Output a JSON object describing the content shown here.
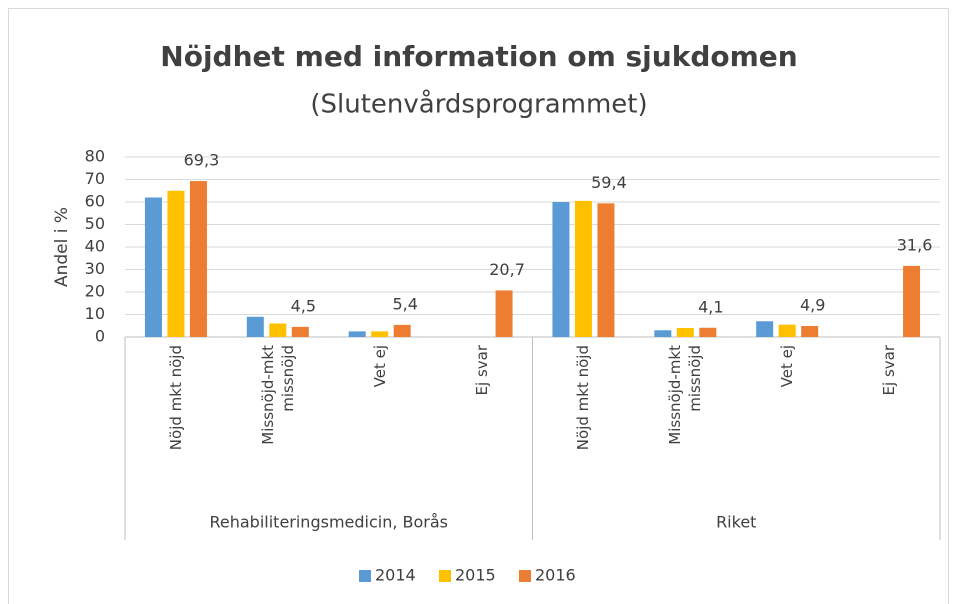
{
  "chart_data": {
    "type": "bar",
    "title": "Nöjdhet med information om sjukdomen",
    "subtitle": "(Slutenvårdsprogrammet)",
    "y_label": "Andel i %",
    "groups": [
      {
        "name": "Rehabiliteringsmedicin, Borås",
        "categories": [
          "Nöjd mkt nöjd",
          "Missnöjd-mkt missnöjd",
          "Vet ej",
          "Ej svar"
        ]
      },
      {
        "name": "Riket",
        "categories": [
          "Nöjd mkt nöjd",
          "Missnöjd-mkt missnöjd",
          "Vet ej",
          "Ej svar"
        ]
      }
    ],
    "series": [
      {
        "name": "2014",
        "color": "#5b9bd5",
        "values": [
          62,
          9,
          2.5,
          null,
          60,
          3,
          7,
          null
        ]
      },
      {
        "name": "2015",
        "color": "#ffc000",
        "values": [
          65,
          6,
          2.5,
          null,
          60.5,
          4,
          5.5,
          null
        ]
      },
      {
        "name": "2016",
        "color": "#ed7d31",
        "values": [
          69.3,
          4.5,
          5.4,
          20.7,
          59.4,
          4.1,
          4.9,
          31.6
        ],
        "value_labels": [
          "69,3",
          "4,5",
          "5,4",
          "20,7",
          "59,4",
          "4,1",
          "4,9",
          "31,6"
        ]
      }
    ],
    "ylim": [
      0,
      80
    ],
    "yticks": [
      0,
      10,
      20,
      30,
      40,
      50,
      60,
      70,
      80
    ],
    "grid": true,
    "legend": "bottom"
  }
}
